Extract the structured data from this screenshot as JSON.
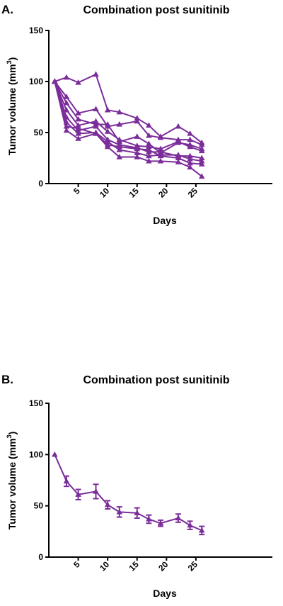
{
  "series_color": "#7B2D9A",
  "chart_data": [
    {
      "panel_label": "A.",
      "type": "line",
      "title": "Combination post sunitinib",
      "xlabel": "Days",
      "ylabel_main": "Tumor volume (mm",
      "ylabel_sup": "3",
      "ylabel_end": ")",
      "xlim": [
        0,
        38
      ],
      "ylim": [
        0,
        150
      ],
      "xticks": [
        5,
        10,
        15,
        20,
        25
      ],
      "yticks": [
        0,
        50,
        100,
        150
      ],
      "marker": "triangle",
      "grid": false,
      "x": [
        1,
        3,
        5,
        8,
        10,
        12,
        15,
        17,
        19,
        22,
        24,
        26
      ],
      "series": [
        {
          "values": [
            100,
            104,
            99,
            107,
            72,
            70,
            64,
            57,
            46,
            56,
            49,
            40
          ]
        },
        {
          "values": [
            100,
            85,
            69,
            73,
            56,
            58,
            61,
            47,
            45,
            43,
            43,
            38
          ]
        },
        {
          "values": [
            100,
            79,
            63,
            58,
            58,
            41,
            46,
            39,
            30,
            40,
            38,
            34
          ]
        },
        {
          "values": [
            100,
            72,
            57,
            61,
            51,
            43,
            37,
            36,
            34,
            41,
            36,
            32
          ]
        },
        {
          "values": [
            100,
            65,
            52,
            56,
            43,
            38,
            35,
            31,
            31,
            27,
            27,
            25
          ]
        },
        {
          "values": [
            100,
            60,
            49,
            50,
            41,
            33,
            30,
            27,
            28,
            28,
            24,
            22
          ]
        },
        {
          "values": [
            100,
            56,
            54,
            49,
            38,
            36,
            34,
            33,
            27,
            25,
            20,
            19
          ]
        },
        {
          "values": [
            100,
            52,
            44,
            49,
            36,
            26,
            26,
            22,
            22,
            21,
            16,
            7
          ]
        }
      ]
    },
    {
      "panel_label": "B.",
      "type": "line",
      "title": "Combination post sunitinib",
      "xlabel": "Days",
      "ylabel_main": "Tumor volume (mm",
      "ylabel_sup": "3",
      "ylabel_end": ")",
      "xlim": [
        0,
        38
      ],
      "ylim": [
        0,
        150
      ],
      "xticks": [
        5,
        10,
        15,
        20,
        25
      ],
      "yticks": [
        0,
        50,
        100,
        150
      ],
      "marker": "triangle",
      "grid": false,
      "x": [
        1,
        3,
        5,
        8,
        10,
        12,
        15,
        17,
        19,
        22,
        24,
        26
      ],
      "series": [
        {
          "values": [
            100,
            74,
            61,
            64,
            51,
            44,
            43,
            37,
            33,
            38,
            31,
            26
          ],
          "error": [
            0,
            5,
            5,
            7,
            4,
            5,
            5,
            4,
            3,
            4,
            4,
            4
          ]
        }
      ]
    }
  ]
}
